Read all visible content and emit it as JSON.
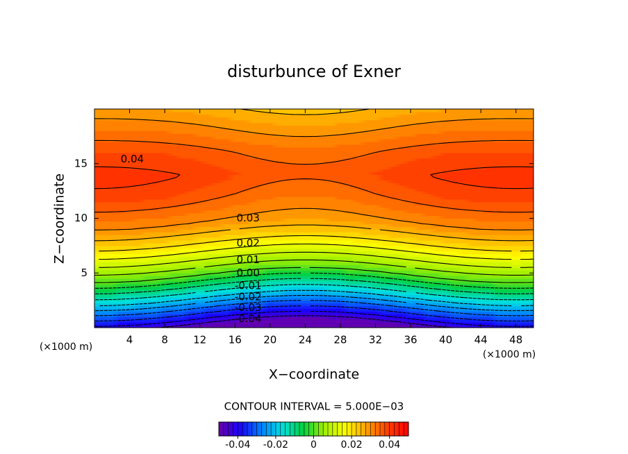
{
  "chart_data": {
    "type": "contour",
    "title": "disturbunce of Exner",
    "xlabel": "X−coordinate",
    "ylabel": "Z−coordinate",
    "x_unit_label": "(×1000 m)",
    "y_unit_label": "(×1000 m)",
    "xlim": [
      0,
      50
    ],
    "ylim": [
      0,
      20
    ],
    "xticks": [
      4,
      8,
      12,
      16,
      20,
      24,
      28,
      32,
      36,
      40,
      44,
      48
    ],
    "yticks": [
      5,
      10,
      15
    ],
    "contour_labels": [
      {
        "value": 0.04,
        "x": 4.3,
        "z": 15.4
      },
      {
        "value": 0.03,
        "x": 17.5,
        "z": 10.0
      },
      {
        "value": 0.02,
        "x": 17.5,
        "z": 7.7
      },
      {
        "value": 0.01,
        "x": 17.5,
        "z": 6.2
      },
      {
        "value": 0,
        "label": "0.00",
        "x": 17.5,
        "z": 5.0
      },
      {
        "value": -0.01,
        "x": 17.5,
        "z": 3.8
      },
      {
        "value": -0.02,
        "x": 17.5,
        "z": 2.8
      },
      {
        "value": -0.03,
        "x": 17.5,
        "z": 1.8
      },
      {
        "value": -0.04,
        "x": 17.5,
        "z": 0.8
      }
    ],
    "contour_interval_text": "CONTOUR INTERVAL = 5.000E−03",
    "zlim": [
      -0.05,
      0.05
    ],
    "colorbar_ticks": [
      -0.04,
      -0.02,
      0,
      0.02,
      0.04
    ],
    "colors": [
      "#6a00a8",
      "#1a00ff",
      "#0080ff",
      "#00e0e0",
      "#00d040",
      "#a0f000",
      "#ffff00",
      "#ffa000",
      "#ff4000",
      "#ff0000"
    ]
  }
}
